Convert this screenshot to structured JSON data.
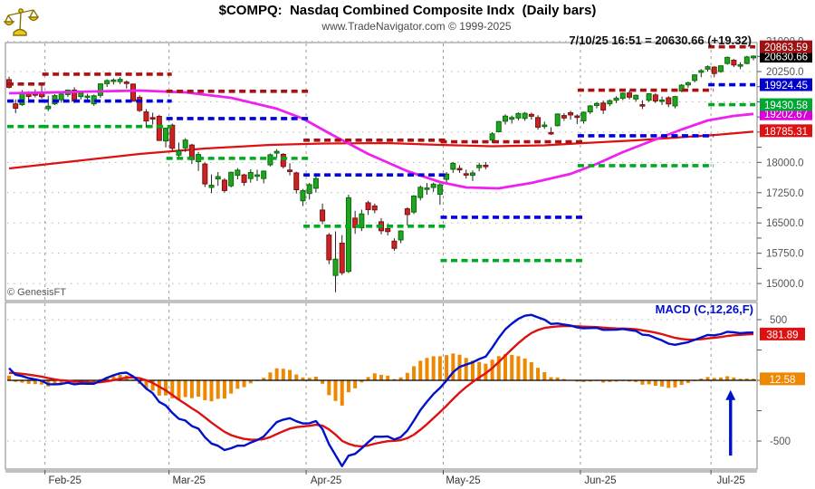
{
  "header": {
    "title": "$COMPQ:  Nasdaq Combined Composite Indx  (Daily bars)",
    "subtitle": "www.TradeNavigator.com © 1999-2025",
    "quote": "7/10/25 16:51 = 20630.66 (+19.32)"
  },
  "watermark": "© GenesisFT",
  "x_axis": {
    "labels": [
      "Feb-25",
      "Mar-25",
      "Apr-25",
      "May-25",
      "Jun-25",
      "Jul-25"
    ],
    "month_boundary_indices": [
      5.5,
      24.5,
      45.5,
      66.5,
      87.5,
      107.5
    ]
  },
  "chart_data": {
    "type": "candlestick",
    "symbol": "$COMPQ",
    "title": "$COMPQ:  Nasdaq Combined Composite Indx  (Daily bars)",
    "last_update": "7/10/25 16:51",
    "last_close": 20630.66,
    "change": 19.32,
    "colors": {
      "up_fill": "#1fa51f",
      "up_stroke": "#0b6b0b",
      "down_fill": "#cc2222",
      "down_stroke": "#7a1010",
      "wick": "#222222",
      "ma_fast": "#ee22ee",
      "ma_slow": "#dd1111",
      "level_red": "#aa1111",
      "level_blue": "#0000dd",
      "level_green": "#00aa22",
      "grid_dot": "#b5b5b5",
      "grid_month": "#9a9a9a",
      "frame": "#999999",
      "axis_tick": "#555555",
      "macd_line": "#0011cc",
      "macd_signal": "#dd1111",
      "hist": "#ee8800",
      "zero_line": "#000000",
      "label_plain": "#555555",
      "xlabel": "#333333"
    },
    "price_panel": {
      "ylim": [
        14576,
        20968
      ],
      "gridlines": [
        15000,
        15750,
        16500,
        17250,
        18000,
        18750,
        19500,
        20250,
        21000
      ],
      "tick_step": 375,
      "plain_labels": [
        [
          21000,
          "21000.0"
        ],
        [
          20250,
          "20250.0"
        ],
        [
          18000,
          "18000.0"
        ],
        [
          17250,
          "17250.0"
        ],
        [
          16500,
          "16500.0"
        ],
        [
          15750,
          "15750.0"
        ],
        [
          15000,
          "15000.0"
        ]
      ],
      "badges": [
        [
          20863.59,
          "20863.59",
          "#a01010"
        ],
        [
          20630.66,
          "20630.66",
          "#000000"
        ],
        [
          19924.45,
          "19924.45",
          "#0000cc"
        ],
        [
          19430.58,
          "19430.58",
          "#00a833"
        ],
        [
          19202.67,
          "19202.67",
          "#dd00dd"
        ],
        [
          18785.31,
          "18785.31",
          "#dd1111"
        ]
      ],
      "levels": [
        {
          "from": 0,
          "to": 5.5,
          "red": 19940,
          "blue": 19520,
          "green": 18890
        },
        {
          "from": 5.5,
          "to": 24.5,
          "red": 20185,
          "blue": 19520,
          "green": 18890
        },
        {
          "from": 24.5,
          "to": 45.5,
          "red": 19760,
          "blue": 19085,
          "green": 18100
        },
        {
          "from": 45.5,
          "to": 66.5,
          "red": 18550,
          "blue": 17690,
          "green": 16420
        },
        {
          "from": 66.5,
          "to": 87.5,
          "red": 18510,
          "blue": 16640,
          "green": 15570
        },
        {
          "from": 87.5,
          "to": 107.5,
          "red": 19790,
          "blue": 18660,
          "green": 17920
        },
        {
          "from": 107.5,
          "to": 114.6,
          "red": 20863.59,
          "blue": 19924.45,
          "green": 19430.58
        }
      ],
      "ma_fast_magenta": [
        [
          0,
          19712
        ],
        [
          6,
          19730
        ],
        [
          13,
          19757
        ],
        [
          20,
          19779
        ],
        [
          27,
          19734
        ],
        [
          34,
          19600
        ],
        [
          41,
          19330
        ],
        [
          45,
          19084
        ],
        [
          49,
          18725
        ],
        [
          55,
          18209
        ],
        [
          61,
          17783
        ],
        [
          66,
          17514
        ],
        [
          70,
          17379
        ],
        [
          75,
          17357
        ],
        [
          80,
          17491
        ],
        [
          86,
          17716
        ],
        [
          90,
          17962
        ],
        [
          94,
          18254
        ],
        [
          99,
          18568
        ],
        [
          103,
          18814
        ],
        [
          107,
          19039
        ],
        [
          111,
          19151
        ],
        [
          114,
          19200
        ]
      ],
      "ma_slow_red": [
        [
          0,
          17850
        ],
        [
          10,
          18029
        ],
        [
          20,
          18209
        ],
        [
          30,
          18343
        ],
        [
          40,
          18433
        ],
        [
          48,
          18467
        ],
        [
          58,
          18478
        ],
        [
          66,
          18433
        ],
        [
          74,
          18399
        ],
        [
          82,
          18422
        ],
        [
          88,
          18478
        ],
        [
          96,
          18545
        ],
        [
          102,
          18612
        ],
        [
          108,
          18679
        ],
        [
          114,
          18760
        ]
      ],
      "candles": [
        [
          20050,
          20120,
          19830,
          19860
        ],
        [
          19450,
          19560,
          19220,
          19342
        ],
        [
          19430,
          19790,
          19400,
          19733
        ],
        [
          19700,
          19760,
          19560,
          19632
        ],
        [
          19700,
          19810,
          19610,
          19681
        ],
        [
          19740,
          19980,
          19580,
          19627
        ],
        [
          19330,
          19650,
          19270,
          19391
        ],
        [
          19450,
          19690,
          19420,
          19654
        ],
        [
          19550,
          19710,
          19480,
          19692
        ],
        [
          19680,
          19800,
          19620,
          19791
        ],
        [
          19790,
          19860,
          19470,
          19523
        ],
        [
          19630,
          19740,
          19560,
          19714
        ],
        [
          19620,
          19700,
          19520,
          19643
        ],
        [
          19450,
          19680,
          19400,
          19650
        ],
        [
          19660,
          19950,
          19600,
          19945
        ],
        [
          19950,
          20060,
          19870,
          20026
        ],
        [
          20020,
          20080,
          19930,
          20041
        ],
        [
          20000,
          20110,
          19940,
          20056
        ],
        [
          19990,
          20030,
          19830,
          19962
        ],
        [
          19940,
          19950,
          19500,
          19524
        ],
        [
          19610,
          19660,
          19250,
          19286
        ],
        [
          19250,
          19320,
          18860,
          19026
        ],
        [
          19110,
          19230,
          18940,
          19075
        ],
        [
          19140,
          19180,
          18530,
          18544
        ],
        [
          18530,
          18860,
          18370,
          18847
        ],
        [
          18920,
          18960,
          18280,
          18350
        ],
        [
          18180,
          18490,
          18090,
          18285
        ],
        [
          18360,
          18600,
          18260,
          18552
        ],
        [
          18430,
          18460,
          17960,
          18069
        ],
        [
          18020,
          18260,
          17790,
          18196
        ],
        [
          17960,
          18000,
          17390,
          17468
        ],
        [
          17380,
          17700,
          17240,
          17436
        ],
        [
          17590,
          17760,
          17420,
          17648
        ],
        [
          17560,
          17610,
          17250,
          17303
        ],
        [
          17420,
          17770,
          17380,
          17754
        ],
        [
          17680,
          17860,
          17580,
          17808
        ],
        [
          17690,
          17720,
          17420,
          17504
        ],
        [
          17600,
          17830,
          17500,
          17750
        ],
        [
          17680,
          17820,
          17540,
          17691
        ],
        [
          17600,
          17800,
          17480,
          17784
        ],
        [
          17940,
          18220,
          17900,
          18189
        ],
        [
          18230,
          18330,
          18120,
          18272
        ],
        [
          18200,
          18230,
          17850,
          17899
        ],
        [
          17810,
          17980,
          17680,
          17804
        ],
        [
          17740,
          17770,
          17230,
          17323
        ],
        [
          17050,
          17340,
          16920,
          17299
        ],
        [
          17230,
          17490,
          17080,
          17449
        ],
        [
          17360,
          17650,
          17250,
          17601
        ],
        [
          16820,
          16980,
          16470,
          16551
        ],
        [
          16200,
          16250,
          15480,
          15588
        ],
        [
          15200,
          16290,
          14784,
          15603
        ],
        [
          16000,
          16200,
          15210,
          15268
        ],
        [
          15300,
          17200,
          15260,
          17125
        ],
        [
          16620,
          16800,
          16230,
          16387
        ],
        [
          16380,
          16830,
          16300,
          16724
        ],
        [
          17000,
          17050,
          16700,
          16831
        ],
        [
          16920,
          16980,
          16740,
          16823
        ],
        [
          16530,
          16620,
          16220,
          16307
        ],
        [
          16360,
          16480,
          16190,
          16286
        ],
        [
          16050,
          16120,
          15810,
          15871
        ],
        [
          16080,
          16320,
          16000,
          16300
        ],
        [
          16850,
          16890,
          16440,
          16708
        ],
        [
          16770,
          17190,
          16720,
          17166
        ],
        [
          17130,
          17430,
          17060,
          17383
        ],
        [
          17350,
          17490,
          17200,
          17366
        ],
        [
          17380,
          17500,
          17270,
          17461
        ],
        [
          17210,
          17480,
          16950,
          17446
        ],
        [
          17580,
          17760,
          17460,
          17710
        ],
        [
          17830,
          18010,
          17740,
          17978
        ],
        [
          17850,
          17930,
          17740,
          17844
        ],
        [
          17720,
          17820,
          17600,
          17690
        ],
        [
          17680,
          17800,
          17540,
          17738
        ],
        [
          17870,
          17990,
          17780,
          17928
        ],
        [
          17930,
          18010,
          17830,
          17929
        ],
        [
          18550,
          18750,
          18480,
          18708
        ],
        [
          18760,
          19030,
          18740,
          19010
        ],
        [
          19020,
          19190,
          18940,
          19146
        ],
        [
          19070,
          19160,
          18960,
          19112
        ],
        [
          19100,
          19240,
          19040,
          19211
        ],
        [
          19090,
          19250,
          19030,
          19215
        ],
        [
          19190,
          19230,
          19060,
          19143
        ],
        [
          19110,
          19170,
          18810,
          18872
        ],
        [
          18890,
          19010,
          18830,
          18925
        ],
        [
          18740,
          18870,
          18680,
          18737
        ],
        [
          18910,
          19210,
          18890,
          19199
        ],
        [
          19160,
          19220,
          19030,
          19100
        ],
        [
          19230,
          19280,
          19060,
          19175
        ],
        [
          19150,
          19190,
          18950,
          19113
        ],
        [
          19030,
          19260,
          18960,
          19242
        ],
        [
          19250,
          19420,
          19200,
          19398
        ],
        [
          19410,
          19490,
          19340,
          19460
        ],
        [
          19470,
          19530,
          19200,
          19298
        ],
        [
          19450,
          19560,
          19390,
          19529
        ],
        [
          19540,
          19640,
          19470,
          19591
        ],
        [
          19590,
          19730,
          19540,
          19714
        ],
        [
          19720,
          19780,
          19560,
          19615
        ],
        [
          19570,
          19680,
          19510,
          19662
        ],
        [
          19430,
          19540,
          19320,
          19406
        ],
        [
          19540,
          19710,
          19500,
          19701
        ],
        [
          19670,
          19710,
          19470,
          19521
        ],
        [
          19530,
          19630,
          19420,
          19546
        ],
        [
          19600,
          19640,
          19370,
          19447
        ],
        [
          19400,
          19650,
          19340,
          19630
        ],
        [
          19770,
          19940,
          19740,
          19912
        ],
        [
          19920,
          20000,
          19850,
          19973
        ],
        [
          20030,
          20180,
          19980,
          20167
        ],
        [
          20230,
          20310,
          20110,
          20273
        ],
        [
          20310,
          20400,
          20250,
          20369
        ],
        [
          20360,
          20380,
          20110,
          20202
        ],
        [
          20250,
          20400,
          20220,
          20393
        ],
        [
          20450,
          20620,
          20420,
          20601
        ],
        [
          20530,
          20560,
          20360,
          20412
        ],
        [
          20400,
          20480,
          20310,
          20418
        ],
        [
          20450,
          20640,
          20430,
          20611
        ],
        [
          20590,
          20655,
          20530,
          20630.66
        ]
      ]
    },
    "macd_panel": {
      "label": "MACD (C,12,26,F)",
      "params": {
        "source": "C",
        "fast": 12,
        "slow": 26,
        "signal": "F"
      },
      "ylim": [
        -731,
        642
      ],
      "gridlines": [
        500,
        -500
      ],
      "axis_labels": [
        [
          500,
          "500"
        ],
        [
          -500,
          "-500"
        ]
      ],
      "badges": [
        [
          381.89,
          "381.89",
          "#dd1111"
        ],
        [
          12.58,
          "12.58",
          "#ee8800"
        ]
      ],
      "seed": {
        "macd_start": 100,
        "signal_start": 62
      },
      "arrow": {
        "bar_index": 110.5,
        "from": -620,
        "to": -80,
        "color": "#0011cc"
      }
    }
  }
}
